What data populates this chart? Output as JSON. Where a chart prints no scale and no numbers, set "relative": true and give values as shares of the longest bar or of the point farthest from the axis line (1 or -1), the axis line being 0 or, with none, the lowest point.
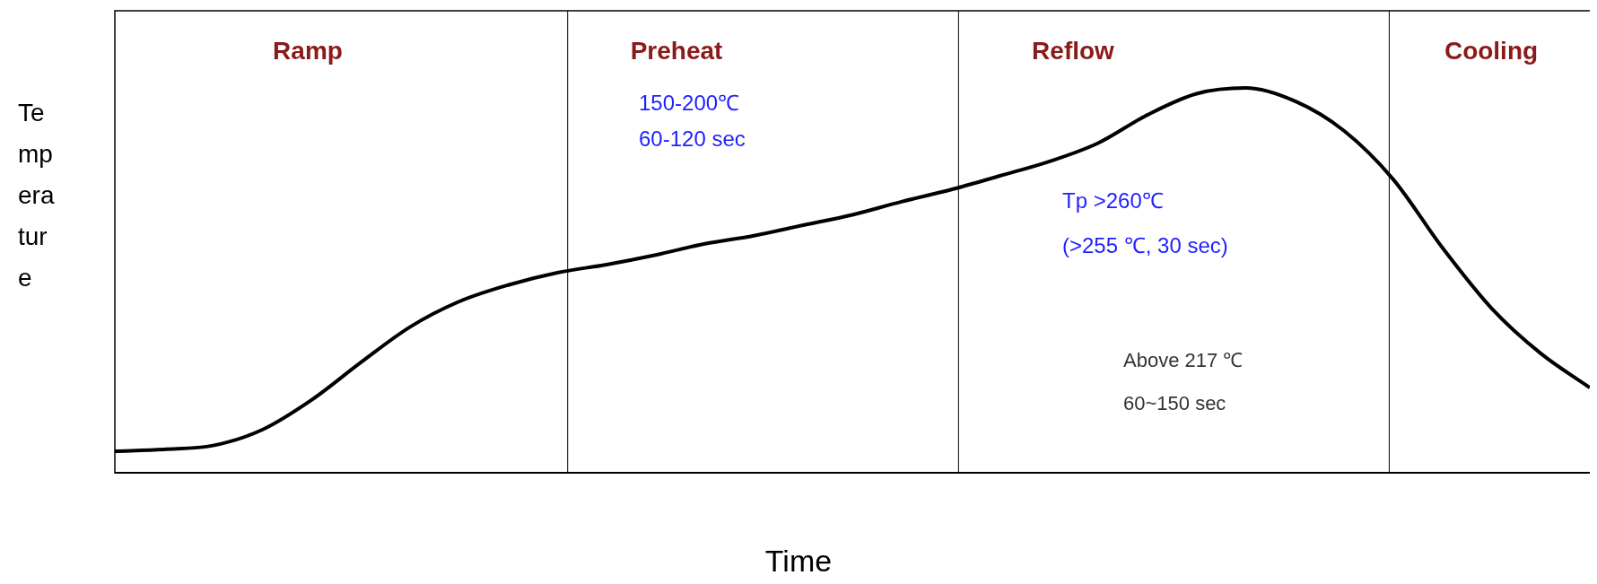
{
  "chart_data": {
    "type": "line",
    "relative": true,
    "xlabel": "Time",
    "ylabel": "Temperature",
    "categories": [
      null,
      null,
      null,
      null,
      null,
      null,
      null,
      null,
      null,
      null,
      null,
      null,
      null,
      null,
      null,
      null,
      null,
      null,
      null,
      null,
      null,
      null,
      null,
      null,
      null,
      null,
      null,
      null,
      null,
      null,
      null
    ],
    "series": [
      {
        "color": "#000000",
        "values": [
          0.058,
          0.063,
          0.073,
          0.114,
          0.191,
          0.288,
          0.38,
          0.446,
          0.489,
          0.521,
          0.542,
          0.567,
          0.596,
          0.617,
          0.644,
          0.671,
          0.705,
          0.736,
          0.772,
          0.809,
          0.857,
          0.93,
          0.985,
          1,
          0.966,
          0.889,
          0.763,
          0.586,
          0.429,
          0.312,
          0.223
        ]
      }
    ],
    "annotations": [
      "Ramp",
      "Preheat",
      "Reflow",
      "Cooling",
      "150-200℃\n60-120 sec",
      "Tp >260℃\n(>255 ℃, 30 sec)",
      "Above 217 ℃\n60~150 sec"
    ],
    "legend": false
  }
}
